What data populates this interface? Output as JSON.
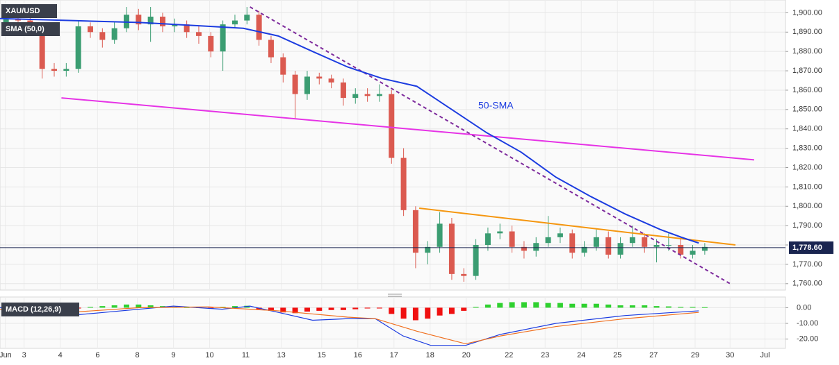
{
  "chart_data": [
    {
      "type": "candlestick",
      "title": "XAU/USD",
      "xlim": [
        0,
        130.4
      ],
      "ylim": [
        1756.7,
        1906.6
      ],
      "yticks": [
        {
          "value": 1760,
          "label": "1,760.00"
        },
        {
          "value": 1770,
          "label": "1,770.00"
        },
        {
          "value": 1780,
          "label": "1,780.00"
        },
        {
          "value": 1790,
          "label": "1,790.00"
        },
        {
          "value": 1800,
          "label": "1,800.00"
        },
        {
          "value": 1810,
          "label": "1,810.00"
        },
        {
          "value": 1820,
          "label": "1,820.00"
        },
        {
          "value": 1830,
          "label": "1,830.00"
        },
        {
          "value": 1840,
          "label": "1,840.00"
        },
        {
          "value": 1850,
          "label": "1,850.00"
        },
        {
          "value": 1860,
          "label": "1,860.00"
        },
        {
          "value": 1870,
          "label": "1,870.00"
        },
        {
          "value": 1880,
          "label": "1,880.00"
        },
        {
          "value": 1890,
          "label": "1,890.00"
        },
        {
          "value": 1900,
          "label": "1,900.00"
        }
      ],
      "grid": true,
      "up_color": "#3b9d72",
      "down_color": "#db5a50",
      "x": [
        1,
        3,
        5,
        7,
        9,
        11,
        13,
        15,
        17,
        19,
        21,
        23,
        25,
        27,
        29,
        31,
        33,
        35,
        37,
        39,
        41,
        43,
        45,
        47,
        49,
        51,
        53,
        55,
        57,
        59,
        61,
        63,
        65,
        67,
        69,
        71,
        73,
        75,
        77,
        79,
        81,
        83,
        85,
        87,
        89,
        91,
        93,
        95,
        97,
        99,
        101,
        103,
        105,
        107,
        109,
        111,
        113,
        115,
        117
      ],
      "open": [
        1893,
        1897,
        1896,
        1893,
        1871,
        1870,
        1871,
        1893,
        1890,
        1886,
        1892,
        1899,
        1894,
        1898,
        1893,
        1894,
        1890,
        1888,
        1880,
        1894,
        1896,
        1899,
        1886,
        1877,
        1868,
        1858,
        1867,
        1866,
        1864,
        1856,
        1858,
        1857,
        1858,
        1825,
        1798,
        1776,
        1779,
        1791,
        1765,
        1764,
        1780,
        1786,
        1787,
        1779,
        1777,
        1781,
        1784,
        1786,
        1776,
        1779,
        1784,
        1775,
        1781,
        1784,
        1779,
        1780,
        1780,
        1775,
        1777
      ],
      "high": [
        1901,
        1900,
        1898,
        1895,
        1874,
        1874,
        1896,
        1895,
        1892,
        1895,
        1903,
        1902,
        1903,
        1900,
        1897,
        1896,
        1893,
        1890,
        1896,
        1899,
        1903,
        1901,
        1888,
        1879,
        1870,
        1870,
        1869,
        1868,
        1866,
        1861,
        1861,
        1863,
        1860,
        1830,
        1800,
        1782,
        1797,
        1794,
        1768,
        1783,
        1789,
        1791,
        1790,
        1782,
        1784,
        1795,
        1789,
        1788,
        1782,
        1788,
        1787,
        1784,
        1790,
        1786,
        1783,
        1786,
        1783,
        1780,
        1781
      ],
      "low": [
        1891,
        1893,
        1890,
        1866,
        1867,
        1867,
        1869,
        1887,
        1882,
        1884,
        1890,
        1891,
        1885,
        1890,
        1890,
        1887,
        1884,
        1877,
        1870,
        1892,
        1894,
        1883,
        1874,
        1864,
        1845,
        1855,
        1863,
        1861,
        1852,
        1853,
        1854,
        1854,
        1822,
        1795,
        1768,
        1770,
        1776,
        1762,
        1761,
        1762,
        1777,
        1783,
        1776,
        1773,
        1774,
        1779,
        1781,
        1773,
        1774,
        1777,
        1773,
        1773,
        1779,
        1776,
        1771,
        1777,
        1773,
        1773,
        1775
      ],
      "close": [
        1897,
        1896,
        1893,
        1871,
        1870,
        1871,
        1893,
        1890,
        1886,
        1892,
        1899,
        1894,
        1898,
        1893,
        1894,
        1890,
        1888,
        1880,
        1894,
        1896,
        1899,
        1886,
        1877,
        1868,
        1858,
        1867,
        1866,
        1864,
        1856,
        1858,
        1857,
        1858,
        1825,
        1798,
        1776,
        1779,
        1791,
        1765,
        1764,
        1780,
        1786,
        1787,
        1779,
        1777,
        1781,
        1784,
        1786,
        1776,
        1779,
        1784,
        1775,
        1781,
        1784,
        1779,
        1780,
        1780,
        1775,
        1777,
        1779
      ],
      "series": [
        {
          "name": "SMA (50,0)",
          "color": "#1c3ce0",
          "x": [
            0,
            11.5,
            23.1,
            34.6,
            40.4,
            46.2,
            51.9,
            57.7,
            63.5,
            69.2,
            75.0,
            80.8,
            86.5,
            92.3,
            98.1,
            103.8,
            109.6,
            113.1,
            116.0
          ],
          "values": [
            1897,
            1896,
            1895,
            1893,
            1892,
            1888,
            1880,
            1872,
            1866,
            1862,
            1850,
            1838,
            1828,
            1815,
            1805,
            1796,
            1788,
            1784,
            1781
          ]
        }
      ],
      "trendlines": [
        {
          "color": "#7d2a9c",
          "dashed": true,
          "x": [
            41.5,
            121.2
          ],
          "values": [
            1903,
            1760
          ]
        },
        {
          "color": "#e633e6",
          "dashed": false,
          "x": [
            10.2,
            125.2
          ],
          "values": [
            1856,
            1824
          ]
        },
        {
          "color": "#f5960f",
          "dashed": false,
          "x": [
            69.6,
            122.1
          ],
          "values": [
            1799,
            1780
          ]
        }
      ],
      "annotation": "50-SMA",
      "last_price": {
        "value": 1778.6,
        "label": "1,778.60"
      },
      "last_color": "#1a2550"
    },
    {
      "type": "macd",
      "title": "MACD (12,26,9)",
      "xlim": [
        0,
        130.4
      ],
      "ylim": [
        -25.9,
        6.8
      ],
      "yticks": [
        {
          "value": 0,
          "label": "0.00"
        },
        {
          "value": -10,
          "label": "-10.00"
        },
        {
          "value": -20,
          "label": "-20.00"
        }
      ],
      "xticks": [
        {
          "value": 0.9,
          "label": "Jun"
        },
        {
          "value": 4.0,
          "label": "3"
        },
        {
          "value": 10.0,
          "label": "4"
        },
        {
          "value": 16.2,
          "label": "6"
        },
        {
          "value": 22.8,
          "label": "8"
        },
        {
          "value": 28.8,
          "label": "9"
        },
        {
          "value": 34.8,
          "label": "10"
        },
        {
          "value": 40.8,
          "label": "11"
        },
        {
          "value": 46.7,
          "label": "13"
        },
        {
          "value": 53.4,
          "label": "15"
        },
        {
          "value": 59.4,
          "label": "16"
        },
        {
          "value": 65.4,
          "label": "17"
        },
        {
          "value": 71.4,
          "label": "18"
        },
        {
          "value": 77.4,
          "label": "20"
        },
        {
          "value": 84.5,
          "label": "22"
        },
        {
          "value": 90.5,
          "label": "23"
        },
        {
          "value": 96.5,
          "label": "24"
        },
        {
          "value": 102.5,
          "label": "25"
        },
        {
          "value": 108.5,
          "label": "27"
        },
        {
          "value": 115.4,
          "label": "29"
        },
        {
          "value": 121.2,
          "label": "30"
        },
        {
          "value": 127.0,
          "label": "Jul"
        }
      ],
      "pos_color": "#2fd12f",
      "neg_color": "#f01010",
      "x": [
        1,
        3,
        5,
        7,
        9,
        11,
        13,
        15,
        17,
        19,
        21,
        23,
        25,
        27,
        29,
        31,
        33,
        35,
        37,
        39,
        41,
        43,
        45,
        47,
        49,
        51,
        53,
        55,
        57,
        59,
        61,
        63,
        65,
        67,
        69,
        71,
        73,
        75,
        77,
        79,
        81,
        83,
        85,
        87,
        89,
        91,
        93,
        95,
        97,
        99,
        101,
        103,
        105,
        107,
        109,
        111,
        113,
        115,
        117
      ],
      "values": [
        -1,
        -1.5,
        -2,
        -2.5,
        -2,
        -1.5,
        -0.5,
        0.5,
        1,
        1.5,
        2,
        2,
        1.5,
        1,
        0.5,
        0.3,
        0.2,
        -0.3,
        0.5,
        1,
        1.2,
        -1,
        -2,
        -3,
        -3.5,
        -2.5,
        -2,
        -1.5,
        -1.5,
        -1,
        -0.5,
        -0.5,
        -4,
        -7,
        -8,
        -7,
        -5,
        -4,
        -2,
        0.5,
        2,
        3,
        3.5,
        3.5,
        3.5,
        3,
        3,
        2.5,
        2.5,
        2.5,
        2,
        1.5,
        1.5,
        1.5,
        1,
        0.8,
        0.5,
        0.5,
        0.3
      ],
      "series": [
        {
          "color": "#1c3ce0",
          "x": [
            0,
            11.5,
            17.3,
            28.8,
            36.9,
            41.5,
            46.2,
            51.9,
            57.7,
            62.3,
            66.9,
            71.5,
            77.3,
            83.1,
            92.3,
            103.8,
            116
          ],
          "values": [
            0,
            -5,
            -3,
            1,
            -1,
            1,
            -3,
            -8,
            -7,
            -7,
            -18,
            -24,
            -24,
            -17,
            -10,
            -5,
            -2
          ]
        },
        {
          "color": "#f07020",
          "x": [
            0,
            11.5,
            23.1,
            34.6,
            46.2,
            57.7,
            62.3,
            69.2,
            77.3,
            83.1,
            92.3,
            103.8,
            116
          ],
          "values": [
            -1,
            -3,
            0,
            0.5,
            -2,
            -6,
            -7,
            -15,
            -23,
            -18,
            -12,
            -7,
            -3
          ]
        }
      ]
    }
  ]
}
